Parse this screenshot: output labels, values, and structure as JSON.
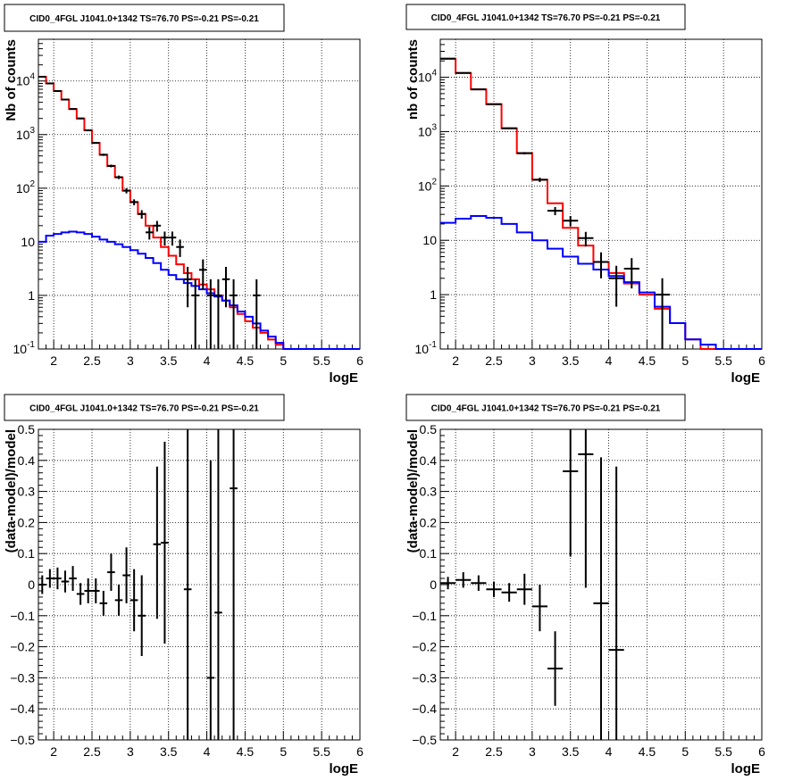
{
  "chart_data": [
    {
      "type": "line",
      "panel": "top-left",
      "title": "CID0_4FGL J1041.0+1342 TS=76.70 PS=-0.21 PS=-0.21",
      "xlabel": "logE",
      "ylabel": "Nb of counts",
      "xlim": [
        1.8,
        6.0
      ],
      "ylim": [
        0.1,
        60000
      ],
      "yscale": "log",
      "grid": true,
      "xticks": [
        "2",
        "2.5",
        "3",
        "3.5",
        "4",
        "4.5",
        "5",
        "5.5",
        "6"
      ],
      "yticks": [
        "10^{-1}",
        "1",
        "10",
        "10^{2}",
        "10^{3}",
        "10^{4}"
      ],
      "bin_edges": [
        1.8,
        1.9,
        2.0,
        2.1,
        2.2,
        2.3,
        2.4,
        2.5,
        2.6,
        2.7,
        2.8,
        2.9,
        3.0,
        3.1,
        3.2,
        3.3,
        3.4,
        3.5,
        3.6,
        3.7,
        3.8,
        3.9,
        4.0,
        4.1,
        4.2,
        4.3,
        4.4,
        4.5,
        4.6,
        4.7,
        4.8,
        4.9,
        5.0,
        5.1,
        5.2,
        5.3,
        5.4,
        5.5,
        5.6,
        5.7,
        5.8,
        5.9,
        6.0
      ],
      "series": [
        {
          "color": "#ff0000",
          "values": [
            12000,
            9000,
            6500,
            4500,
            3000,
            2000,
            1200,
            700,
            420,
            260,
            160,
            90,
            55,
            33,
            20,
            12,
            8,
            5.5,
            3.8,
            2.6,
            2.0,
            1.6,
            1.3,
            1.0,
            0.8,
            0.6,
            0.45,
            0.33,
            0.25,
            0.2,
            0.15,
            0.12,
            0.1,
            0.1,
            0.1,
            0.1,
            0.1,
            0.1,
            0.1,
            0.1,
            0.1,
            0.1
          ]
        },
        {
          "color": "#0000ff",
          "values": [
            10,
            13,
            14,
            15,
            15.5,
            15,
            14,
            12.5,
            11,
            10,
            9,
            8,
            7,
            6,
            5,
            4,
            3,
            2.4,
            2.0,
            1.7,
            1.5,
            1.3,
            1.1,
            0.95,
            0.8,
            0.65,
            0.5,
            0.4,
            0.3,
            0.22,
            0.17,
            0.13,
            0.1,
            0.1,
            0.1,
            0.1,
            0.1,
            0.1,
            0.1,
            0.1,
            0.1,
            0.1
          ]
        }
      ],
      "points": [
        {
          "x": 1.85,
          "y": 12000,
          "xerr": 0.05,
          "ylo": 11900,
          "yhi": 12100
        },
        {
          "x": 1.95,
          "y": 9000,
          "xerr": 0.05,
          "ylo": 8900,
          "yhi": 9100
        },
        {
          "x": 2.05,
          "y": 6500,
          "xerr": 0.05,
          "ylo": 6400,
          "yhi": 6600
        },
        {
          "x": 2.15,
          "y": 4500,
          "xerr": 0.05,
          "ylo": 4430,
          "yhi": 4570
        },
        {
          "x": 2.25,
          "y": 3000,
          "xerr": 0.05,
          "ylo": 2950,
          "yhi": 3050
        },
        {
          "x": 2.35,
          "y": 2000,
          "xerr": 0.05,
          "ylo": 1960,
          "yhi": 2040
        },
        {
          "x": 2.45,
          "y": 1200,
          "xerr": 0.05,
          "ylo": 1170,
          "yhi": 1230
        },
        {
          "x": 2.55,
          "y": 700,
          "xerr": 0.05,
          "ylo": 675,
          "yhi": 725
        },
        {
          "x": 2.65,
          "y": 420,
          "xerr": 0.05,
          "ylo": 400,
          "yhi": 440
        },
        {
          "x": 2.75,
          "y": 260,
          "xerr": 0.05,
          "ylo": 245,
          "yhi": 275
        },
        {
          "x": 2.85,
          "y": 160,
          "xerr": 0.05,
          "ylo": 148,
          "yhi": 172
        },
        {
          "x": 2.95,
          "y": 90,
          "xerr": 0.05,
          "ylo": 80,
          "yhi": 100
        },
        {
          "x": 3.05,
          "y": 55,
          "xerr": 0.05,
          "ylo": 48,
          "yhi": 62
        },
        {
          "x": 3.15,
          "y": 33,
          "xerr": 0.05,
          "ylo": 27,
          "yhi": 39
        },
        {
          "x": 3.25,
          "y": 15,
          "xerr": 0.05,
          "ylo": 11,
          "yhi": 19
        },
        {
          "x": 3.35,
          "y": 20,
          "xerr": 0.05,
          "ylo": 15.5,
          "yhi": 24.5
        },
        {
          "x": 3.45,
          "y": 12,
          "xerr": 0.05,
          "ylo": 8.5,
          "yhi": 15.5
        },
        {
          "x": 3.55,
          "y": 12,
          "xerr": 0.05,
          "ylo": 8.5,
          "yhi": 15.5
        },
        {
          "x": 3.65,
          "y": 8,
          "xerr": 0.05,
          "ylo": 5.2,
          "yhi": 11
        },
        {
          "x": 3.75,
          "y": 2,
          "xerr": 0.05,
          "ylo": 0.6,
          "yhi": 3.4
        },
        {
          "x": 3.85,
          "y": 1,
          "xerr": 0.05,
          "ylo": 0.1,
          "yhi": 2
        },
        {
          "x": 3.95,
          "y": 3,
          "xerr": 0.05,
          "ylo": 1.3,
          "yhi": 4.7
        },
        {
          "x": 4.05,
          "y": 1,
          "xerr": 0.05,
          "ylo": 0.1,
          "yhi": 2
        },
        {
          "x": 4.15,
          "y": 1,
          "xerr": 0.05,
          "ylo": 0.1,
          "yhi": 2
        },
        {
          "x": 4.25,
          "y": 2,
          "xerr": 0.05,
          "ylo": 0.6,
          "yhi": 3.4
        },
        {
          "x": 4.35,
          "y": 1,
          "xerr": 0.05,
          "ylo": 0.1,
          "yhi": 2
        },
        {
          "x": 4.65,
          "y": 1,
          "xerr": 0.05,
          "ylo": 0.1,
          "yhi": 2
        }
      ]
    },
    {
      "type": "line",
      "panel": "top-right",
      "title": "CID0_4FGL J1041.0+1342 TS=76.70 PS=-0.21 PS=-0.21",
      "xlabel": "logE",
      "ylabel": "nb of counts",
      "xlim": [
        1.8,
        6.0
      ],
      "ylim": [
        0.1,
        50000
      ],
      "yscale": "log",
      "grid": true,
      "xticks": [
        "2",
        "2.5",
        "3",
        "3.5",
        "4",
        "4.5",
        "5",
        "5.5",
        "6"
      ],
      "yticks": [
        "10^{-1}",
        "1",
        "10",
        "10^{2}",
        "10^{3}",
        "10^{4}"
      ],
      "bin_edges": [
        1.8,
        2.0,
        2.2,
        2.4,
        2.6,
        2.8,
        3.0,
        3.2,
        3.4,
        3.6,
        3.8,
        4.0,
        4.2,
        4.4,
        4.6,
        4.8,
        5.0,
        5.2,
        5.4,
        5.6,
        5.8,
        6.0
      ],
      "series": [
        {
          "color": "#ff0000",
          "values": [
            22000,
            12000,
            6000,
            3200,
            1150,
            400,
            130,
            48,
            17,
            8,
            4,
            2.5,
            1.6,
            1,
            0.55,
            0.3,
            0.15,
            0.1,
            0.1,
            0.1,
            0.1
          ]
        },
        {
          "color": "#0000ff",
          "values": [
            21,
            25,
            28,
            26,
            20,
            14,
            10,
            7,
            5,
            3.7,
            2.9,
            2.2,
            1.7,
            1.1,
            0.6,
            0.3,
            0.15,
            0.12,
            0.1,
            0.1,
            0.1
          ]
        }
      ],
      "points": [
        {
          "x": 1.9,
          "y": 22000,
          "xerr": 0.1,
          "ylo": 21800,
          "yhi": 22200
        },
        {
          "x": 2.1,
          "y": 12000,
          "xerr": 0.1,
          "ylo": 11850,
          "yhi": 12150
        },
        {
          "x": 2.3,
          "y": 6000,
          "xerr": 0.1,
          "ylo": 5900,
          "yhi": 6100
        },
        {
          "x": 2.5,
          "y": 3200,
          "xerr": 0.1,
          "ylo": 3130,
          "yhi": 3270
        },
        {
          "x": 2.7,
          "y": 1150,
          "xerr": 0.1,
          "ylo": 1110,
          "yhi": 1190
        },
        {
          "x": 2.9,
          "y": 400,
          "xerr": 0.1,
          "ylo": 380,
          "yhi": 420
        },
        {
          "x": 3.1,
          "y": 130,
          "xerr": 0.1,
          "ylo": 118,
          "yhi": 142
        },
        {
          "x": 3.3,
          "y": 35,
          "xerr": 0.1,
          "ylo": 29,
          "yhi": 41
        },
        {
          "x": 3.5,
          "y": 23,
          "xerr": 0.1,
          "ylo": 18,
          "yhi": 28
        },
        {
          "x": 3.7,
          "y": 11,
          "xerr": 0.1,
          "ylo": 7.7,
          "yhi": 14.3
        },
        {
          "x": 3.9,
          "y": 4,
          "xerr": 0.1,
          "ylo": 2,
          "yhi": 6
        },
        {
          "x": 4.1,
          "y": 2,
          "xerr": 0.1,
          "ylo": 0.6,
          "yhi": 3.4
        },
        {
          "x": 4.3,
          "y": 3,
          "xerr": 0.1,
          "ylo": 1.3,
          "yhi": 4.7
        },
        {
          "x": 4.7,
          "y": 1,
          "xerr": 0.1,
          "ylo": 0.1,
          "yhi": 2
        }
      ]
    },
    {
      "type": "scatter",
      "panel": "bottom-left",
      "title": "CID0_4FGL J1041.0+1342 TS=76.70 PS=-0.21 PS=-0.21",
      "xlabel": "logE",
      "ylabel": "(data-model)/model",
      "xlim": [
        1.8,
        6.0
      ],
      "ylim": [
        -0.5,
        0.5
      ],
      "grid": true,
      "xticks": [
        "2",
        "2.5",
        "3",
        "3.5",
        "4",
        "4.5",
        "5",
        "5.5",
        "6"
      ],
      "yticks": [
        "−0.5",
        "−0.4",
        "−0.3",
        "−0.2",
        "−0.1",
        "0",
        "0.1",
        "0.2",
        "0.3",
        "0.4",
        "0.5"
      ],
      "points": [
        {
          "x": 1.85,
          "y": 0.0,
          "xerr": 0.05,
          "ylo": -0.03,
          "yhi": 0.03
        },
        {
          "x": 1.95,
          "y": 0.02,
          "xerr": 0.05,
          "ylo": -0.01,
          "yhi": 0.05
        },
        {
          "x": 2.05,
          "y": 0.02,
          "xerr": 0.05,
          "ylo": -0.015,
          "yhi": 0.055
        },
        {
          "x": 2.15,
          "y": 0.01,
          "xerr": 0.05,
          "ylo": -0.025,
          "yhi": 0.045
        },
        {
          "x": 2.25,
          "y": 0.02,
          "xerr": 0.05,
          "ylo": -0.02,
          "yhi": 0.06
        },
        {
          "x": 2.35,
          "y": -0.03,
          "xerr": 0.05,
          "ylo": -0.065,
          "yhi": 0.005
        },
        {
          "x": 2.45,
          "y": -0.02,
          "xerr": 0.05,
          "ylo": -0.06,
          "yhi": 0.02
        },
        {
          "x": 2.55,
          "y": -0.02,
          "xerr": 0.05,
          "ylo": -0.06,
          "yhi": 0.02
        },
        {
          "x": 2.65,
          "y": -0.06,
          "xerr": 0.05,
          "ylo": -0.1,
          "yhi": -0.02
        },
        {
          "x": 2.75,
          "y": 0.04,
          "xerr": 0.05,
          "ylo": -0.02,
          "yhi": 0.1
        },
        {
          "x": 2.85,
          "y": -0.05,
          "xerr": 0.05,
          "ylo": -0.1,
          "yhi": 0.0
        },
        {
          "x": 2.95,
          "y": 0.03,
          "xerr": 0.05,
          "ylo": -0.06,
          "yhi": 0.12
        },
        {
          "x": 3.05,
          "y": -0.05,
          "xerr": 0.05,
          "ylo": -0.15,
          "yhi": 0.05
        },
        {
          "x": 3.15,
          "y": -0.1,
          "xerr": 0.05,
          "ylo": -0.23,
          "yhi": 0.03
        },
        {
          "x": 3.35,
          "y": 0.13,
          "xerr": 0.05,
          "ylo": -0.11,
          "yhi": 0.38
        },
        {
          "x": 3.45,
          "y": 0.135,
          "xerr": 0.05,
          "ylo": -0.19,
          "yhi": 0.46
        },
        {
          "x": 3.75,
          "y": -0.015,
          "xerr": 0.05,
          "ylo": -0.5,
          "yhi": 0.5
        },
        {
          "x": 4.05,
          "y": -0.3,
          "xerr": 0.05,
          "ylo": -0.5,
          "yhi": 0.4
        },
        {
          "x": 4.15,
          "y": -0.09,
          "xerr": 0.05,
          "ylo": -0.5,
          "yhi": 0.5
        },
        {
          "x": 4.35,
          "y": 0.31,
          "xerr": 0.05,
          "ylo": -0.5,
          "yhi": 0.5
        }
      ]
    },
    {
      "type": "scatter",
      "panel": "bottom-right",
      "title": "CID0_4FGL J1041.0+1342 TS=76.70 PS=-0.21 PS=-0.21",
      "xlabel": "logE",
      "ylabel": "(data-model)/model",
      "xlim": [
        1.8,
        6.0
      ],
      "ylim": [
        -0.5,
        0.5
      ],
      "grid": true,
      "xticks": [
        "2",
        "2.5",
        "3",
        "3.5",
        "4",
        "4.5",
        "5",
        "5.5",
        "6"
      ],
      "yticks": [
        "−0.5",
        "−0.4",
        "−0.3",
        "−0.2",
        "−0.1",
        "0",
        "0.1",
        "0.2",
        "0.3",
        "0.4",
        "0.5"
      ],
      "points": [
        {
          "x": 1.9,
          "y": 0.005,
          "xerr": 0.1,
          "ylo": -0.015,
          "yhi": 0.025
        },
        {
          "x": 2.1,
          "y": 0.015,
          "xerr": 0.1,
          "ylo": -0.01,
          "yhi": 0.04
        },
        {
          "x": 2.3,
          "y": 0.005,
          "xerr": 0.1,
          "ylo": -0.02,
          "yhi": 0.03
        },
        {
          "x": 2.5,
          "y": -0.015,
          "xerr": 0.1,
          "ylo": -0.04,
          "yhi": 0.01
        },
        {
          "x": 2.7,
          "y": -0.025,
          "xerr": 0.1,
          "ylo": -0.055,
          "yhi": 0.005
        },
        {
          "x": 2.9,
          "y": -0.015,
          "xerr": 0.1,
          "ylo": -0.065,
          "yhi": 0.035
        },
        {
          "x": 3.1,
          "y": -0.07,
          "xerr": 0.1,
          "ylo": -0.15,
          "yhi": 0.0
        },
        {
          "x": 3.3,
          "y": -0.27,
          "xerr": 0.1,
          "ylo": -0.39,
          "yhi": -0.15
        },
        {
          "x": 3.5,
          "y": 0.365,
          "xerr": 0.1,
          "ylo": 0.09,
          "yhi": 0.5
        },
        {
          "x": 3.7,
          "y": 0.42,
          "xerr": 0.1,
          "ylo": -0.01,
          "yhi": 0.5
        },
        {
          "x": 3.9,
          "y": -0.06,
          "xerr": 0.1,
          "ylo": -0.5,
          "yhi": 0.41
        },
        {
          "x": 4.1,
          "y": -0.21,
          "xerr": 0.1,
          "ylo": -0.5,
          "yhi": 0.38
        }
      ]
    }
  ]
}
